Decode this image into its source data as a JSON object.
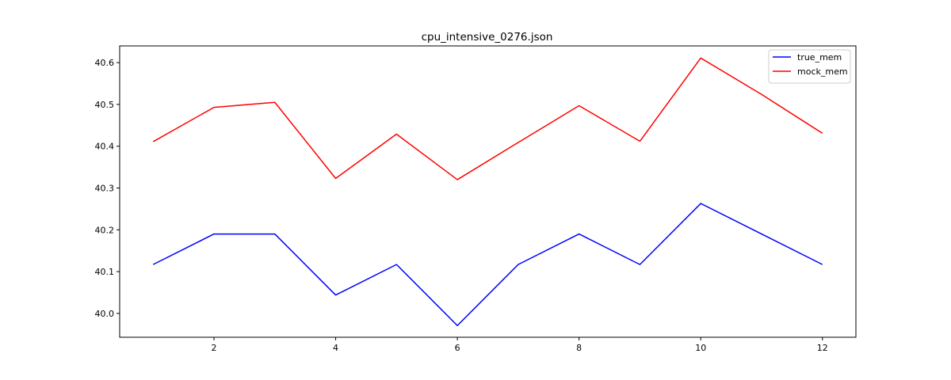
{
  "chart_data": {
    "type": "line",
    "title": "cpu_intensive_0276.json",
    "xlabel": "",
    "ylabel": "",
    "x": [
      1,
      2,
      3,
      4,
      5,
      6,
      7,
      8,
      9,
      10,
      11,
      12
    ],
    "xlim": [
      0.45,
      12.55
    ],
    "ylim": [
      39.943,
      40.64
    ],
    "xticks": [
      2,
      4,
      6,
      8,
      10,
      12
    ],
    "yticks": [
      40.0,
      40.1,
      40.2,
      40.3,
      40.4,
      40.5,
      40.6
    ],
    "grid": false,
    "legend_position": "top-right",
    "series": [
      {
        "name": "true_mem",
        "color": "#0000ff",
        "values": [
          40.117,
          40.19,
          40.19,
          40.044,
          40.117,
          39.971,
          40.117,
          40.19,
          40.117,
          40.263,
          40.19,
          40.117
        ]
      },
      {
        "name": "mock_mem",
        "color": "#ff0000",
        "values": [
          40.411,
          40.493,
          40.505,
          40.323,
          40.429,
          40.32,
          40.409,
          40.497,
          40.412,
          40.611,
          40.524,
          40.431
        ]
      }
    ]
  }
}
